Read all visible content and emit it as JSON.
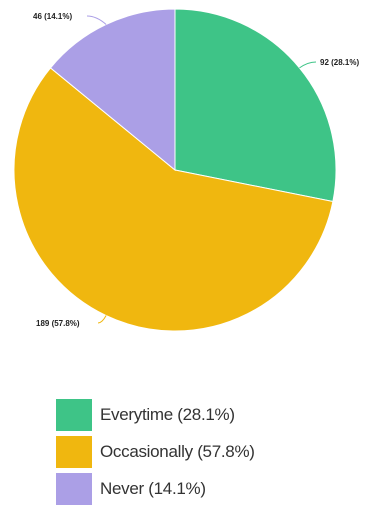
{
  "chart_data": {
    "type": "pie",
    "slices": [
      {
        "label": "Everytime",
        "value": 92,
        "percent": 28.1,
        "color": "#3ec487",
        "data_label": "92 (28.1%)",
        "legend": "Everytime (28.1%)"
      },
      {
        "label": "Occasionally",
        "value": 189,
        "percent": 57.8,
        "color": "#f0b70f",
        "data_label": "189 (57.8%)",
        "legend": "Occasionally (57.8%)"
      },
      {
        "label": "Never",
        "value": 46,
        "percent": 14.1,
        "color": "#ab9fe6",
        "data_label": "46 (14.1%)",
        "legend": "Never (14.1%)"
      }
    ],
    "legend_position": "bottom"
  }
}
